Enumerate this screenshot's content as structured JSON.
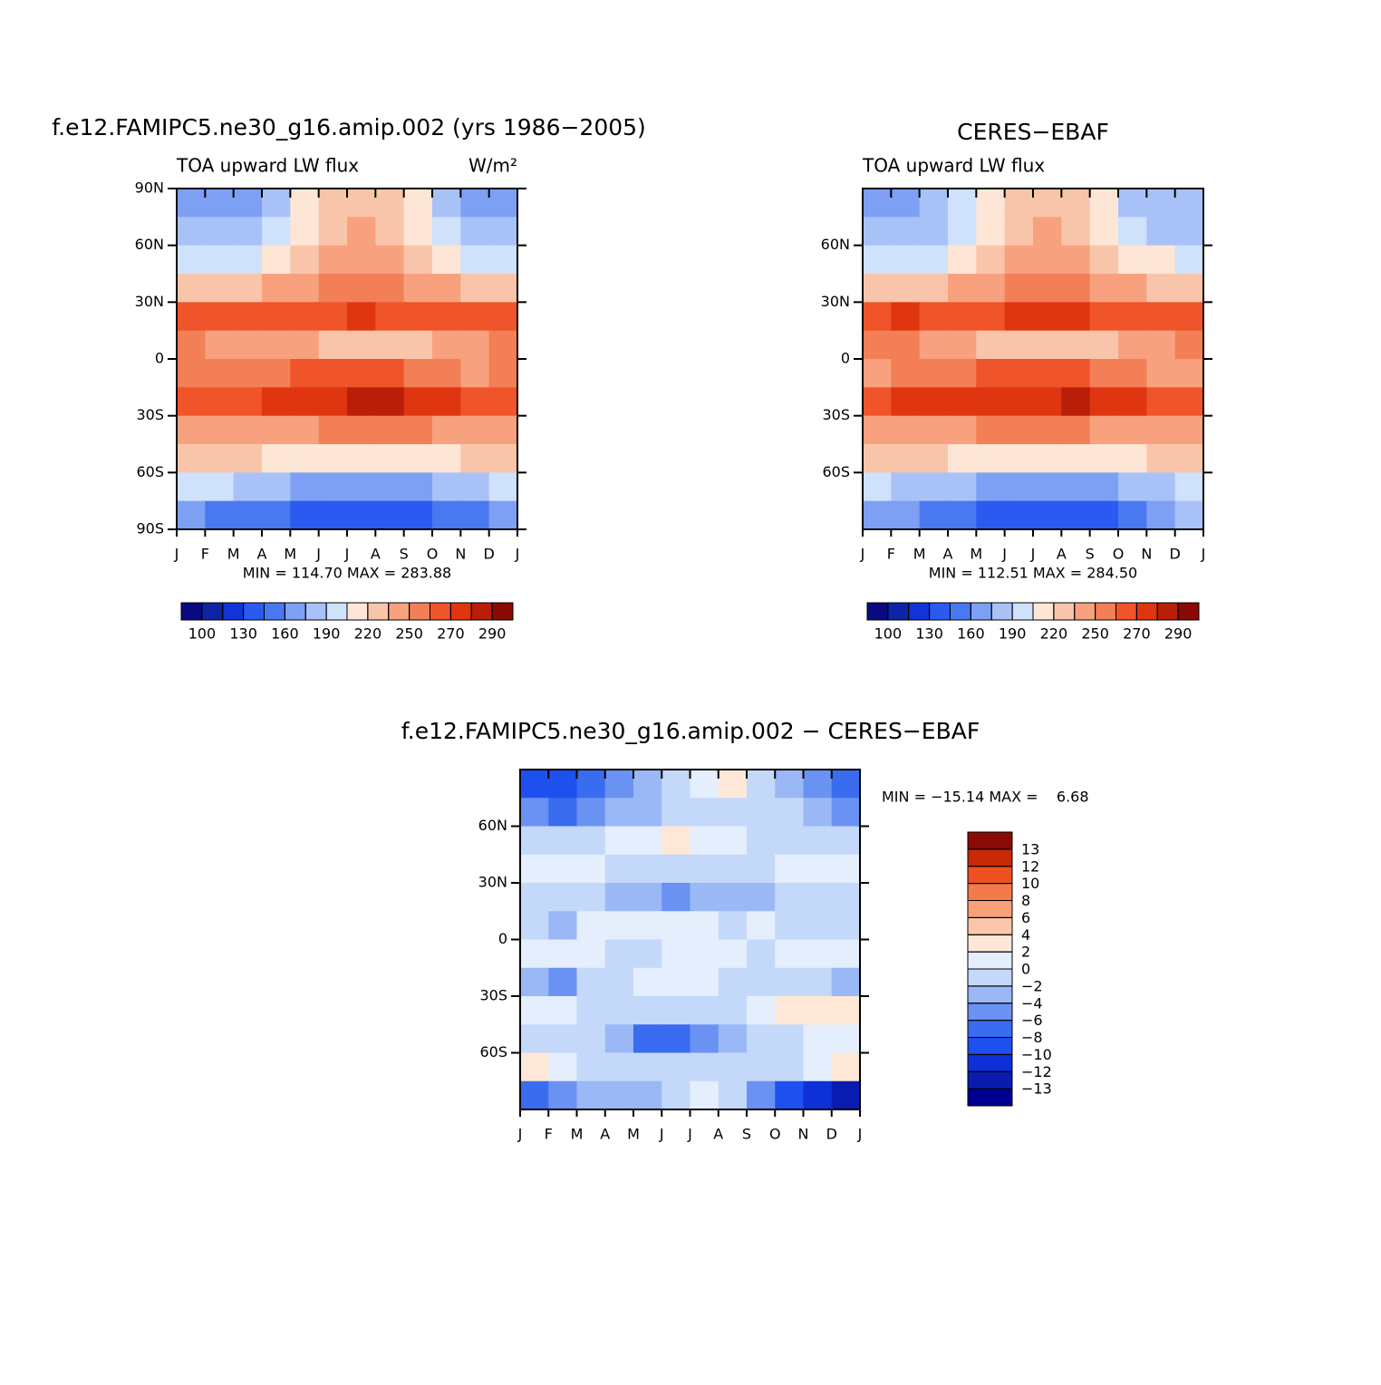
{
  "chart_data": [
    {
      "type": "contour",
      "title": "f.e12.FAMIPC5.ne30_g16.amip.002 (yrs 1986−2005)",
      "left_string": "TOA upward LW flux",
      "right_string": "W/m²",
      "annotation": "MIN = 114.70 MAX = 283.88",
      "x": [
        0.5,
        1.5,
        2.5,
        3.5,
        4.5,
        5.5,
        6.5,
        7.5,
        8.5,
        9.5,
        10.5,
        11.5
      ],
      "y": [
        82.5,
        67.5,
        52.5,
        37.5,
        22.5,
        7.5,
        -7.5,
        -22.5,
        -37.5,
        -52.5,
        -67.5,
        -82.5
      ],
      "values": [
        [
          165,
          160,
          170,
          185,
          205,
          225,
          230,
          225,
          205,
          185,
          170,
          168
        ],
        [
          180,
          178,
          182,
          192,
          210,
          228,
          235,
          230,
          212,
          195,
          185,
          182
        ],
        [
          200,
          198,
          200,
          210,
          222,
          238,
          245,
          240,
          228,
          212,
          203,
          200
        ],
        [
          230,
          228,
          230,
          235,
          242,
          252,
          258,
          255,
          248,
          240,
          233,
          230
        ],
        [
          265,
          268,
          268,
          262,
          262,
          265,
          270,
          268,
          265,
          263,
          265,
          265
        ],
        [
          250,
          248,
          245,
          240,
          235,
          228,
          225,
          226,
          230,
          238,
          245,
          250
        ],
        [
          250,
          252,
          255,
          255,
          260,
          262,
          263,
          262,
          258,
          252,
          248,
          250
        ],
        [
          262,
          265,
          268,
          270,
          275,
          278,
          280,
          280,
          275,
          270,
          265,
          262
        ],
        [
          245,
          245,
          245,
          245,
          248,
          250,
          252,
          252,
          250,
          248,
          245,
          245
        ],
        [
          222,
          222,
          220,
          215,
          212,
          210,
          208,
          208,
          210,
          215,
          220,
          222
        ],
        [
          195,
          190,
          180,
          175,
          170,
          168,
          165,
          165,
          168,
          175,
          185,
          192
        ],
        [
          165,
          155,
          150,
          145,
          138,
          135,
          132,
          133,
          135,
          145,
          155,
          162
        ]
      ],
      "xlim": [
        0,
        12
      ],
      "ylim": [
        -90,
        90
      ],
      "xticks": [
        {
          "value": 0,
          "label": "J"
        },
        {
          "value": 1,
          "label": "F"
        },
        {
          "value": 2,
          "label": "M"
        },
        {
          "value": 3,
          "label": "A"
        },
        {
          "value": 4,
          "label": "M"
        },
        {
          "value": 5,
          "label": "J"
        },
        {
          "value": 6,
          "label": "J"
        },
        {
          "value": 7,
          "label": "A"
        },
        {
          "value": 8,
          "label": "S"
        },
        {
          "value": 9,
          "label": "O"
        },
        {
          "value": 10,
          "label": "N"
        },
        {
          "value": 11,
          "label": "D"
        },
        {
          "value": 12,
          "label": "J"
        }
      ],
      "yticks": [
        {
          "value": 90,
          "label": "90N"
        },
        {
          "value": 60,
          "label": "60N"
        },
        {
          "value": 30,
          "label": "30N"
        },
        0,
        {
          "value": -30,
          "label": "30S"
        },
        {
          "value": -60,
          "label": "60S"
        },
        {
          "value": -90,
          "label": "90S"
        }
      ],
      "colorbar": {
        "orientation": "horizontal",
        "label_every": 2,
        "levels": [
          100,
          115,
          130,
          145,
          160,
          175,
          190,
          205,
          220,
          235,
          250,
          260,
          270,
          280,
          290
        ],
        "colors": [
          "#0a0a80",
          "#0d24a8",
          "#1234d6",
          "#2a5af0",
          "#4a78f0",
          "#7da0f5",
          "#a8c2f8",
          "#cfe1fb",
          "#fde6d6",
          "#f9c5aa",
          "#f7a17f",
          "#f27f56",
          "#f0542a",
          "#df3510",
          "#b81e08",
          "#8c0a05"
        ]
      }
    },
    {
      "type": "contour",
      "title": "CERES−EBAF",
      "left_string": "TOA upward LW flux",
      "annotation": "MIN = 112.51 MAX = 284.50",
      "x": [
        0.5,
        1.5,
        2.5,
        3.5,
        4.5,
        5.5,
        6.5,
        7.5,
        8.5,
        9.5,
        10.5,
        11.5
      ],
      "y": [
        82.5,
        67.5,
        52.5,
        37.5,
        22.5,
        7.5,
        -7.5,
        -22.5,
        -37.5,
        -52.5,
        -67.5,
        -82.5
      ],
      "values": [
        [
          174,
          170,
          177,
          190,
          208,
          226,
          229,
          223,
          206,
          188,
          175,
          175
        ],
        [
          186,
          185,
          187,
          196,
          213,
          229,
          237,
          231,
          213,
          197,
          189,
          188
        ],
        [
          202,
          199,
          201,
          210,
          222,
          236,
          244,
          240,
          229,
          213,
          205,
          202
        ],
        [
          229,
          227,
          230,
          236,
          243,
          253,
          259,
          256,
          249,
          240,
          232,
          229
        ],
        [
          266,
          270,
          269,
          265,
          266,
          270,
          274,
          271,
          268,
          265,
          267,
          266
        ],
        [
          251,
          251,
          244,
          239,
          234,
          227,
          224,
          227,
          229,
          239,
          247,
          251
        ],
        [
          249,
          251,
          254,
          257,
          261,
          261,
          262,
          261,
          259,
          252,
          247,
          249
        ],
        [
          266,
          270,
          270,
          271,
          274,
          277,
          279,
          281,
          276,
          271,
          267,
          266
        ],
        [
          244,
          245,
          246,
          247,
          250,
          251,
          253,
          253,
          249,
          246,
          243,
          243
        ],
        [
          223,
          223,
          222,
          218,
          219,
          217,
          213,
          211,
          211,
          216,
          220,
          221
        ],
        [
          193,
          189,
          181,
          177,
          172,
          170,
          166,
          166,
          170,
          176,
          184,
          190
        ],
        [
          173,
          161,
          154,
          149,
          141,
          137,
          131,
          135,
          141,
          155,
          167,
          175
        ]
      ],
      "xlim": [
        0,
        12
      ],
      "ylim": [
        -90,
        90
      ],
      "xticks": [
        {
          "value": 0,
          "label": "J"
        },
        {
          "value": 1,
          "label": "F"
        },
        {
          "value": 2,
          "label": "M"
        },
        {
          "value": 3,
          "label": "A"
        },
        {
          "value": 4,
          "label": "M"
        },
        {
          "value": 5,
          "label": "J"
        },
        {
          "value": 6,
          "label": "J"
        },
        {
          "value": 7,
          "label": "A"
        },
        {
          "value": 8,
          "label": "S"
        },
        {
          "value": 9,
          "label": "O"
        },
        {
          "value": 10,
          "label": "N"
        },
        {
          "value": 11,
          "label": "D"
        },
        {
          "value": 12,
          "label": "J"
        }
      ],
      "yticks": [
        {
          "value": 60,
          "label": "60N"
        },
        {
          "value": 30,
          "label": "30N"
        },
        0,
        {
          "value": -30,
          "label": "30S"
        },
        {
          "value": -60,
          "label": "60S"
        }
      ],
      "colorbar": {
        "orientation": "horizontal",
        "label_every": 2,
        "levels": [
          100,
          115,
          130,
          145,
          160,
          175,
          190,
          205,
          220,
          235,
          250,
          260,
          270,
          280,
          290
        ],
        "colors": [
          "#0a0a80",
          "#0d24a8",
          "#1234d6",
          "#2a5af0",
          "#4a78f0",
          "#7da0f5",
          "#a8c2f8",
          "#cfe1fb",
          "#fde6d6",
          "#f9c5aa",
          "#f7a17f",
          "#f27f56",
          "#f0542a",
          "#df3510",
          "#b81e08",
          "#8c0a05"
        ]
      }
    },
    {
      "type": "contour",
      "title": "f.e12.FAMIPC5.ne30_g16.amip.002 − CERES−EBAF",
      "annotation": "MIN = −15.14 MAX =    6.68",
      "x": [
        0.5,
        1.5,
        2.5,
        3.5,
        4.5,
        5.5,
        6.5,
        7.5,
        8.5,
        9.5,
        10.5,
        11.5
      ],
      "y": [
        82.5,
        67.5,
        52.5,
        37.5,
        22.5,
        7.5,
        -7.5,
        -22.5,
        -37.5,
        -52.5,
        -67.5,
        -82.5
      ],
      "values": [
        [
          -9,
          -10,
          -7,
          -5,
          -3,
          -1,
          1,
          2,
          -1,
          -3,
          -5,
          -7
        ],
        [
          -6,
          -7,
          -5,
          -4,
          -3,
          -1,
          -2,
          -1,
          -1,
          -2,
          -4,
          -6
        ],
        [
          -2,
          -1,
          -1,
          0,
          0,
          2,
          1,
          0,
          -1,
          -1,
          -2,
          -2
        ],
        [
          1,
          1,
          0,
          -1,
          -1,
          -1,
          -1,
          -1,
          -1,
          0,
          1,
          1
        ],
        [
          -1,
          -2,
          -1,
          -3,
          -4,
          -5,
          -4,
          -3,
          -3,
          -2,
          -2,
          -1
        ],
        [
          -1,
          -3,
          1,
          1,
          1,
          1,
          1,
          -1,
          1,
          -1,
          -2,
          -1
        ],
        [
          1,
          1,
          1,
          -2,
          -1,
          1,
          1,
          1,
          -1,
          0,
          1,
          1
        ],
        [
          -4,
          -5,
          -2,
          -1,
          1,
          1,
          1,
          -1,
          -1,
          -1,
          -2,
          -4
        ],
        [
          1,
          0,
          -1,
          -2,
          -2,
          -1,
          -1,
          -1,
          1,
          2,
          2,
          2
        ],
        [
          -1,
          -1,
          -2,
          -3,
          -7,
          -7,
          -5,
          -3,
          -1,
          -1,
          0,
          1
        ],
        [
          2,
          1,
          -1,
          -2,
          -2,
          -2,
          -1,
          -1,
          -2,
          -1,
          1,
          2
        ],
        [
          -8,
          -6,
          -4,
          -4,
          -3,
          -2,
          1,
          -2,
          -6,
          -10,
          -12,
          -13
        ]
      ],
      "xlim": [
        0,
        12
      ],
      "ylim": [
        -90,
        90
      ],
      "xticks": [
        {
          "value": 0,
          "label": "J"
        },
        {
          "value": 1,
          "label": "F"
        },
        {
          "value": 2,
          "label": "M"
        },
        {
          "value": 3,
          "label": "A"
        },
        {
          "value": 4,
          "label": "M"
        },
        {
          "value": 5,
          "label": "J"
        },
        {
          "value": 6,
          "label": "J"
        },
        {
          "value": 7,
          "label": "A"
        },
        {
          "value": 8,
          "label": "S"
        },
        {
          "value": 9,
          "label": "O"
        },
        {
          "value": 10,
          "label": "N"
        },
        {
          "value": 11,
          "label": "D"
        },
        {
          "value": 12,
          "label": "J"
        }
      ],
      "yticks": [
        {
          "value": 60,
          "label": "60N"
        },
        {
          "value": 30,
          "label": "30N"
        },
        0,
        {
          "value": -30,
          "label": "30S"
        },
        {
          "value": -60,
          "label": "60S"
        }
      ],
      "colorbar": {
        "orientation": "vertical",
        "label_every": 1,
        "levels": [
          {
            "value": -13,
            "label": "−13"
          },
          {
            "value": -12,
            "label": "−12"
          },
          {
            "value": -10,
            "label": "−10"
          },
          {
            "value": -8,
            "label": "−8"
          },
          {
            "value": -6,
            "label": "−6"
          },
          {
            "value": -4,
            "label": "−4"
          },
          {
            "value": -2,
            "label": "−2"
          },
          0,
          2,
          4,
          6,
          8,
          10,
          12,
          13
        ],
        "colors": [
          "#000090",
          "#0a1cb0",
          "#0d30d8",
          "#1e50f0",
          "#3a6cf0",
          "#6a92f2",
          "#9ab8f6",
          "#c4d8fa",
          "#e4eefc",
          "#fde8d8",
          "#fbc7a8",
          "#f9a07a",
          "#f57a4a",
          "#ef5020",
          "#c82a08",
          "#8c0a05"
        ]
      }
    }
  ]
}
